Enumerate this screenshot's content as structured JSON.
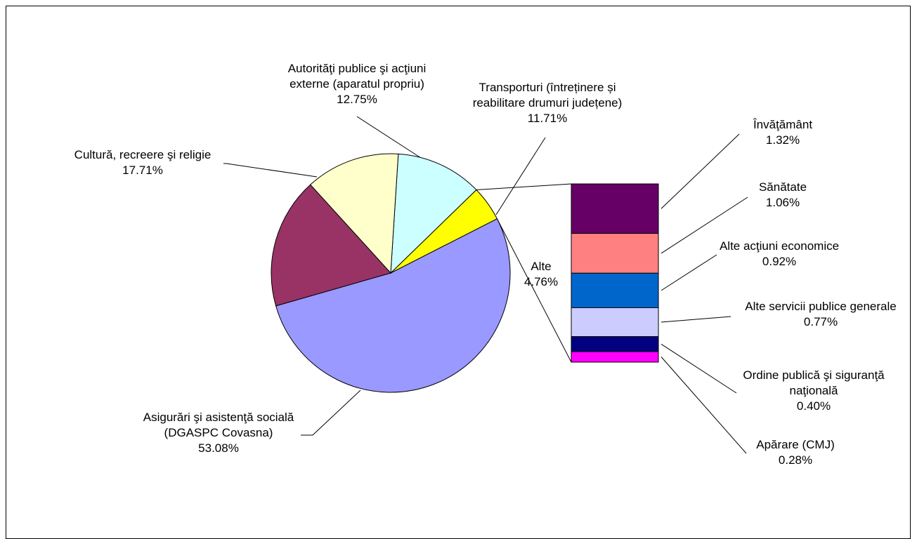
{
  "chart_data": {
    "type": "pie",
    "title": "",
    "series": [
      {
        "name": "",
        "slices": [
          {
            "label_lines": [
              "Asigurări şi asistenţă socială",
              "(DGASPC Covasna)"
            ],
            "value_label": "53.08%",
            "value": 53.08,
            "color": "#9999FF"
          },
          {
            "label_lines": [
              "Alte"
            ],
            "value_label": "4.76%",
            "value": 4.76,
            "color": "#FFFF00"
          },
          {
            "label_lines": [
              "Transporturi (întreținere  și",
              "reabilitare drumuri județene)"
            ],
            "value_label": "11.71%",
            "value": 11.71,
            "color": "#CCFFFF"
          },
          {
            "label_lines": [
              "Autorităţi publice şi acţiuni",
              "externe (aparatul propriu)"
            ],
            "value_label": "12.75%",
            "value": 12.75,
            "color": "#FFFFCC"
          },
          {
            "label_lines": [
              "Cultură, recreere şi religie"
            ],
            "value_label": "17.71%",
            "value": 17.71,
            "color": "#993366"
          }
        ]
      },
      {
        "name": "",
        "breakdown_of": "Alte",
        "segments": [
          {
            "label_lines": [
              "Învăţământ"
            ],
            "value_label": "1.32%",
            "value": 1.32,
            "color": "#660066"
          },
          {
            "label_lines": [
              "Sănătate"
            ],
            "value_label": "1.06%",
            "value": 1.06,
            "color": "#FF8080"
          },
          {
            "label_lines": [
              "Alte acţiuni economice"
            ],
            "value_label": "0.92%",
            "value": 0.92,
            "color": "#0066CC"
          },
          {
            "label_lines": [
              "Alte servicii publice generale"
            ],
            "value_label": "0.77%",
            "value": 0.77,
            "color": "#CCCCFF"
          },
          {
            "label_lines": [
              "Ordine publică şi siguranţă",
              "naţională"
            ],
            "value_label": "0.40%",
            "value": 0.4,
            "color": "#000080"
          },
          {
            "label_lines": [
              "Apărare (CMJ)"
            ],
            "value_label": "0.28%",
            "value": 0.28,
            "color": "#FF00FF"
          }
        ]
      }
    ],
    "legend": "none"
  }
}
